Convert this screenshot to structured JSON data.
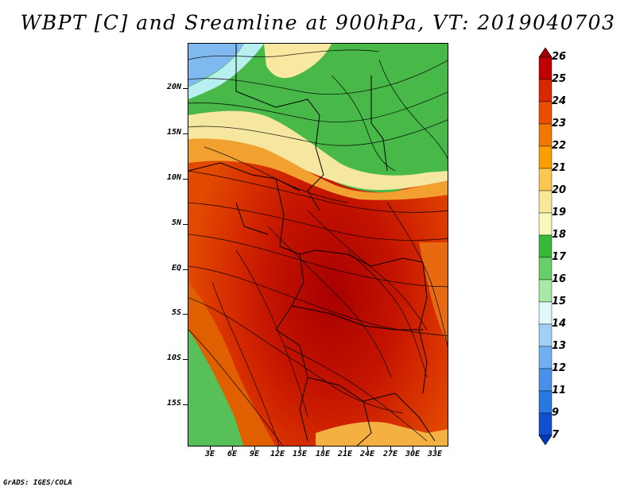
{
  "title": "WBPT [C] and Sreamline at 900hPa, VT: 2019040703",
  "credit": "GrADS: IGES/COLA",
  "map": {
    "variable": "Wet-bulb potential temperature",
    "level": "900hPa",
    "lat_labels": [
      "20N",
      "15N",
      "10N",
      "5N",
      "EQ",
      "5S",
      "10S",
      "15S"
    ],
    "lon_labels": [
      "3E",
      "6E",
      "9E",
      "12E",
      "15E",
      "18E",
      "21E",
      "24E",
      "27E",
      "30E",
      "33E"
    ]
  },
  "colorbar": {
    "labels": [
      "26",
      "25",
      "24",
      "23",
      "22",
      "21",
      "20",
      "19",
      "18",
      "17",
      "16",
      "15",
      "14",
      "13",
      "12",
      "11",
      "9",
      "7"
    ],
    "colors": [
      "#a00000",
      "#c00000",
      "#d82800",
      "#e85000",
      "#f07800",
      "#f8a000",
      "#f8c850",
      "#f8e898",
      "#f8f8b8",
      "#38b838",
      "#68d068",
      "#a8e8a8",
      "#e0f8f8",
      "#a0d0f8",
      "#70b0f0",
      "#4890e8",
      "#2878e0",
      "#1050d0",
      "#0038c0"
    ]
  }
}
